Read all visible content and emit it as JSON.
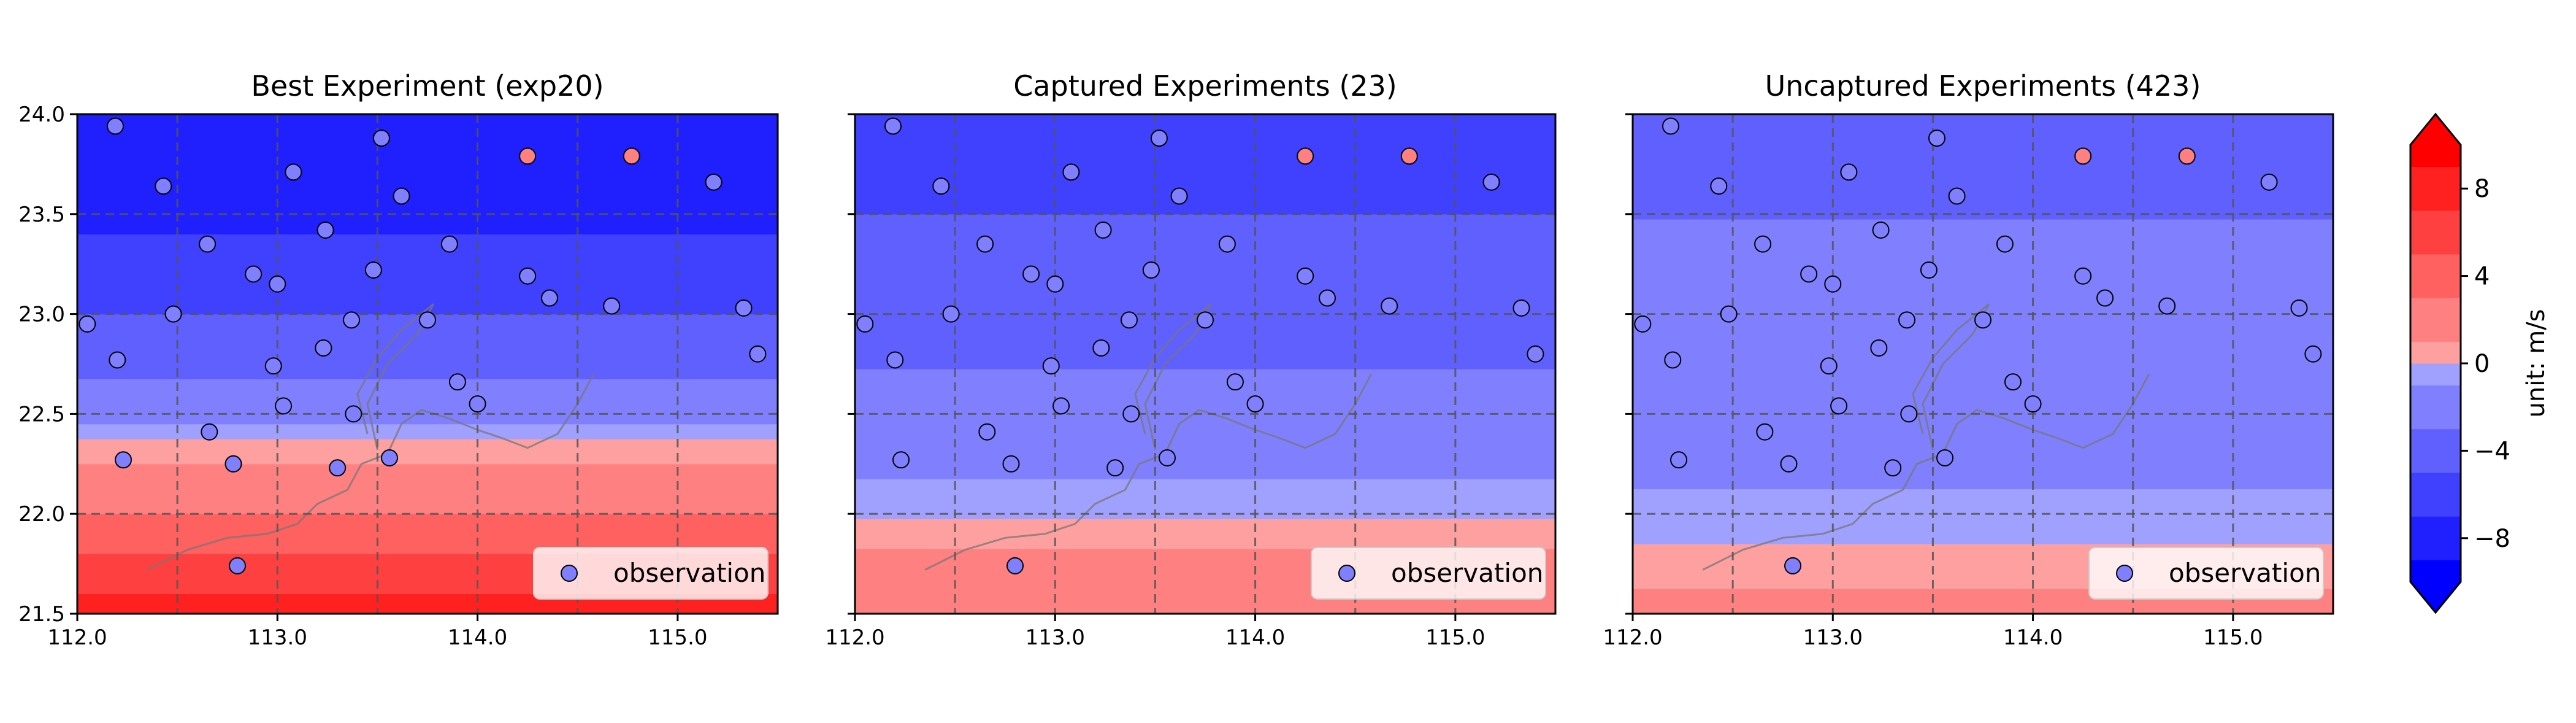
{
  "figure": {
    "colorbar_label": "unit: m/s",
    "legend_label": "observation",
    "x_ticks": [
      "112.0",
      "113.0",
      "114.0",
      "115.0"
    ],
    "y_ticks": [
      "21.5",
      "22.0",
      "22.5",
      "23.0",
      "23.5",
      "24.0"
    ],
    "colorbar_ticks": [
      "8",
      "4",
      "0",
      "−4",
      "−8"
    ]
  },
  "colors": {
    "levels": [
      {
        "from": -10,
        "to": -9,
        "color": "#0000ff"
      },
      {
        "from": -9,
        "to": -7,
        "color": "#2020ff"
      },
      {
        "from": -7,
        "to": -5,
        "color": "#4040ff"
      },
      {
        "from": -5,
        "to": -3,
        "color": "#6060ff"
      },
      {
        "from": -3,
        "to": -1,
        "color": "#8080ff"
      },
      {
        "from": -1,
        "to": 0,
        "color": "#a0a0ff"
      },
      {
        "from": 0,
        "to": 1,
        "color": "#ffa0a0"
      },
      {
        "from": 1,
        "to": 3,
        "color": "#ff8080"
      },
      {
        "from": 3,
        "to": 5,
        "color": "#ff6060"
      },
      {
        "from": 5,
        "to": 7,
        "color": "#ff4040"
      },
      {
        "from": 7,
        "to": 9,
        "color": "#ff2020"
      },
      {
        "from": 9,
        "to": 10,
        "color": "#ff0000"
      }
    ],
    "grid_line": "#555555",
    "coastline": "#777777"
  },
  "chart_data": [
    {
      "type": "heatmap",
      "title": "Best Experiment (exp20)",
      "xlim": [
        112.0,
        115.5
      ],
      "ylim": [
        21.5,
        24.0
      ],
      "color_range": [
        -10,
        10
      ],
      "grid": true,
      "legend_position": "lower-right",
      "field_profile": [
        {
          "lat": 21.5,
          "value": 8.0
        },
        {
          "lat": 21.8,
          "value": 5.0
        },
        {
          "lat": 22.1,
          "value": 2.0
        },
        {
          "lat": 22.35,
          "value": 0.2
        },
        {
          "lat": 22.6,
          "value": -2.5
        },
        {
          "lat": 23.0,
          "value": -5.0
        },
        {
          "lat": 23.5,
          "value": -7.5
        },
        {
          "lat": 24.0,
          "value": -9.0
        }
      ],
      "observations": [
        {
          "lon": 112.05,
          "lat": 22.95,
          "value": -3
        },
        {
          "lon": 112.2,
          "lat": 22.77,
          "value": -3
        },
        {
          "lon": 112.23,
          "lat": 22.27,
          "value": -3
        },
        {
          "lon": 112.19,
          "lat": 23.94,
          "value": -3
        },
        {
          "lon": 112.43,
          "lat": 23.64,
          "value": -3
        },
        {
          "lon": 112.48,
          "lat": 23.0,
          "value": -3
        },
        {
          "lon": 112.65,
          "lat": 23.35,
          "value": -3
        },
        {
          "lon": 112.66,
          "lat": 22.41,
          "value": -3
        },
        {
          "lon": 112.78,
          "lat": 22.25,
          "value": -3
        },
        {
          "lon": 112.8,
          "lat": 21.74,
          "value": -3
        },
        {
          "lon": 112.88,
          "lat": 23.2,
          "value": -3
        },
        {
          "lon": 113.0,
          "lat": 23.15,
          "value": -3
        },
        {
          "lon": 112.98,
          "lat": 22.74,
          "value": -3
        },
        {
          "lon": 113.03,
          "lat": 22.54,
          "value": -3
        },
        {
          "lon": 113.08,
          "lat": 23.71,
          "value": -3
        },
        {
          "lon": 113.23,
          "lat": 22.83,
          "value": -3
        },
        {
          "lon": 113.24,
          "lat": 23.42,
          "value": -3
        },
        {
          "lon": 113.3,
          "lat": 22.23,
          "value": -3
        },
        {
          "lon": 113.37,
          "lat": 22.97,
          "value": -3
        },
        {
          "lon": 113.38,
          "lat": 22.5,
          "value": -3
        },
        {
          "lon": 113.48,
          "lat": 23.22,
          "value": -3
        },
        {
          "lon": 113.52,
          "lat": 23.88,
          "value": -3
        },
        {
          "lon": 113.56,
          "lat": 22.28,
          "value": -3
        },
        {
          "lon": 113.62,
          "lat": 23.59,
          "value": -3
        },
        {
          "lon": 113.75,
          "lat": 22.97,
          "value": -3
        },
        {
          "lon": 113.86,
          "lat": 23.35,
          "value": -3
        },
        {
          "lon": 113.9,
          "lat": 22.66,
          "value": -3
        },
        {
          "lon": 114.0,
          "lat": 22.55,
          "value": -3
        },
        {
          "lon": 114.25,
          "lat": 23.19,
          "value": -3
        },
        {
          "lon": 114.25,
          "lat": 23.79,
          "value": 1
        },
        {
          "lon": 114.36,
          "lat": 23.08,
          "value": -3
        },
        {
          "lon": 114.67,
          "lat": 23.04,
          "value": -3
        },
        {
          "lon": 114.77,
          "lat": 23.79,
          "value": 1
        },
        {
          "lon": 115.18,
          "lat": 23.66,
          "value": -3
        },
        {
          "lon": 115.33,
          "lat": 23.03,
          "value": -3
        },
        {
          "lon": 115.4,
          "lat": 22.8,
          "value": -3
        }
      ]
    },
    {
      "type": "heatmap",
      "title": "Captured Experiments (23)",
      "xlim": [
        112.0,
        115.5
      ],
      "ylim": [
        21.5,
        24.0
      ],
      "color_range": [
        -10,
        10
      ],
      "grid": true,
      "legend_position": "lower-right",
      "field_profile": [
        {
          "lat": 21.5,
          "value": 3.0
        },
        {
          "lat": 21.8,
          "value": 1.2
        },
        {
          "lat": 22.05,
          "value": -0.5
        },
        {
          "lat": 22.4,
          "value": -2.0
        },
        {
          "lat": 22.9,
          "value": -3.5
        },
        {
          "lat": 23.5,
          "value": -5.0
        },
        {
          "lat": 24.0,
          "value": -6.0
        }
      ],
      "observations": [
        {
          "lon": 112.05,
          "lat": 22.95,
          "value": -3
        },
        {
          "lon": 112.2,
          "lat": 22.77,
          "value": -3
        },
        {
          "lon": 112.23,
          "lat": 22.27,
          "value": -3
        },
        {
          "lon": 112.19,
          "lat": 23.94,
          "value": -3
        },
        {
          "lon": 112.43,
          "lat": 23.64,
          "value": -3
        },
        {
          "lon": 112.48,
          "lat": 23.0,
          "value": -3
        },
        {
          "lon": 112.65,
          "lat": 23.35,
          "value": -3
        },
        {
          "lon": 112.66,
          "lat": 22.41,
          "value": -3
        },
        {
          "lon": 112.78,
          "lat": 22.25,
          "value": -3
        },
        {
          "lon": 112.8,
          "lat": 21.74,
          "value": -3
        },
        {
          "lon": 112.88,
          "lat": 23.2,
          "value": -3
        },
        {
          "lon": 113.0,
          "lat": 23.15,
          "value": -3
        },
        {
          "lon": 112.98,
          "lat": 22.74,
          "value": -3
        },
        {
          "lon": 113.03,
          "lat": 22.54,
          "value": -3
        },
        {
          "lon": 113.08,
          "lat": 23.71,
          "value": -3
        },
        {
          "lon": 113.23,
          "lat": 22.83,
          "value": -3
        },
        {
          "lon": 113.24,
          "lat": 23.42,
          "value": -3
        },
        {
          "lon": 113.3,
          "lat": 22.23,
          "value": -3
        },
        {
          "lon": 113.37,
          "lat": 22.97,
          "value": -3
        },
        {
          "lon": 113.38,
          "lat": 22.5,
          "value": -3
        },
        {
          "lon": 113.48,
          "lat": 23.22,
          "value": -3
        },
        {
          "lon": 113.52,
          "lat": 23.88,
          "value": -3
        },
        {
          "lon": 113.56,
          "lat": 22.28,
          "value": -3
        },
        {
          "lon": 113.62,
          "lat": 23.59,
          "value": -3
        },
        {
          "lon": 113.75,
          "lat": 22.97,
          "value": -3
        },
        {
          "lon": 113.86,
          "lat": 23.35,
          "value": -3
        },
        {
          "lon": 113.9,
          "lat": 22.66,
          "value": -3
        },
        {
          "lon": 114.0,
          "lat": 22.55,
          "value": -3
        },
        {
          "lon": 114.25,
          "lat": 23.19,
          "value": -3
        },
        {
          "lon": 114.25,
          "lat": 23.79,
          "value": 1
        },
        {
          "lon": 114.36,
          "lat": 23.08,
          "value": -3
        },
        {
          "lon": 114.67,
          "lat": 23.04,
          "value": -3
        },
        {
          "lon": 114.77,
          "lat": 23.79,
          "value": 1
        },
        {
          "lon": 115.18,
          "lat": 23.66,
          "value": -3
        },
        {
          "lon": 115.33,
          "lat": 23.03,
          "value": -3
        },
        {
          "lon": 115.4,
          "lat": 22.8,
          "value": -3
        }
      ]
    },
    {
      "type": "heatmap",
      "title": "Uncaptured Experiments (423)",
      "xlim": [
        112.0,
        115.5
      ],
      "ylim": [
        21.5,
        24.0
      ],
      "color_range": [
        -10,
        10
      ],
      "grid": true,
      "legend_position": "lower-right",
      "field_profile": [
        {
          "lat": 21.5,
          "value": 1.5
        },
        {
          "lat": 21.8,
          "value": 0.3
        },
        {
          "lat": 22.0,
          "value": -0.8
        },
        {
          "lat": 22.6,
          "value": -1.8
        },
        {
          "lat": 23.2,
          "value": -2.6
        },
        {
          "lat": 24.0,
          "value": -3.8
        }
      ],
      "observations": [
        {
          "lon": 112.05,
          "lat": 22.95,
          "value": -3
        },
        {
          "lon": 112.2,
          "lat": 22.77,
          "value": -3
        },
        {
          "lon": 112.23,
          "lat": 22.27,
          "value": -3
        },
        {
          "lon": 112.19,
          "lat": 23.94,
          "value": -3
        },
        {
          "lon": 112.43,
          "lat": 23.64,
          "value": -3
        },
        {
          "lon": 112.48,
          "lat": 23.0,
          "value": -3
        },
        {
          "lon": 112.65,
          "lat": 23.35,
          "value": -3
        },
        {
          "lon": 112.66,
          "lat": 22.41,
          "value": -3
        },
        {
          "lon": 112.78,
          "lat": 22.25,
          "value": -3
        },
        {
          "lon": 112.8,
          "lat": 21.74,
          "value": -3
        },
        {
          "lon": 112.88,
          "lat": 23.2,
          "value": -3
        },
        {
          "lon": 113.0,
          "lat": 23.15,
          "value": -3
        },
        {
          "lon": 112.98,
          "lat": 22.74,
          "value": -3
        },
        {
          "lon": 113.03,
          "lat": 22.54,
          "value": -3
        },
        {
          "lon": 113.08,
          "lat": 23.71,
          "value": -3
        },
        {
          "lon": 113.23,
          "lat": 22.83,
          "value": -3
        },
        {
          "lon": 113.24,
          "lat": 23.42,
          "value": -3
        },
        {
          "lon": 113.3,
          "lat": 22.23,
          "value": -3
        },
        {
          "lon": 113.37,
          "lat": 22.97,
          "value": -3
        },
        {
          "lon": 113.38,
          "lat": 22.5,
          "value": -3
        },
        {
          "lon": 113.48,
          "lat": 23.22,
          "value": -3
        },
        {
          "lon": 113.52,
          "lat": 23.88,
          "value": -3
        },
        {
          "lon": 113.56,
          "lat": 22.28,
          "value": -3
        },
        {
          "lon": 113.62,
          "lat": 23.59,
          "value": -3
        },
        {
          "lon": 113.75,
          "lat": 22.97,
          "value": -3
        },
        {
          "lon": 113.86,
          "lat": 23.35,
          "value": -3
        },
        {
          "lon": 113.9,
          "lat": 22.66,
          "value": -3
        },
        {
          "lon": 114.0,
          "lat": 22.55,
          "value": -3
        },
        {
          "lon": 114.25,
          "lat": 23.19,
          "value": -3
        },
        {
          "lon": 114.25,
          "lat": 23.79,
          "value": 1
        },
        {
          "lon": 114.36,
          "lat": 23.08,
          "value": -3
        },
        {
          "lon": 114.67,
          "lat": 23.04,
          "value": -3
        },
        {
          "lon": 114.77,
          "lat": 23.79,
          "value": 1
        },
        {
          "lon": 115.18,
          "lat": 23.66,
          "value": -3
        },
        {
          "lon": 115.33,
          "lat": 23.03,
          "value": -3
        },
        {
          "lon": 115.4,
          "lat": 22.8,
          "value": -3
        }
      ]
    }
  ]
}
